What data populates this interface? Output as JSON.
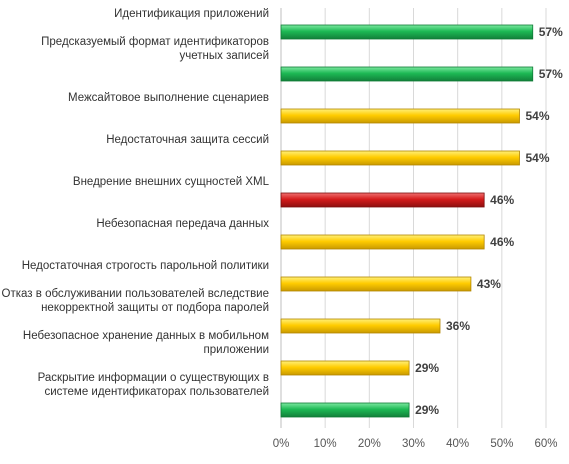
{
  "chart_data": {
    "type": "bar",
    "orientation": "horizontal",
    "categories": [
      [
        "Идентификация приложений"
      ],
      [
        "Предсказуемый формат идентификаторов",
        "учетных записей"
      ],
      [
        "Межсайтовое выполнение сценариев"
      ],
      [
        "Недостаточная защита сессий"
      ],
      [
        "Внедрение внешних сущностей XML"
      ],
      [
        "Небезопасная передача данных"
      ],
      [
        "Недостаточная строгость парольной политики"
      ],
      [
        "Отказ в обслуживании пользователей вследствие",
        "некорректной защиты от подбора паролей"
      ],
      [
        "Небезопасное хранение данных в мобильном",
        "приложении"
      ],
      [
        "Раскрытие информации о существующих в",
        "системе идентификаторах пользователей"
      ]
    ],
    "values": [
      57,
      57,
      54,
      54,
      46,
      46,
      43,
      36,
      29,
      29
    ],
    "value_labels": [
      "57%",
      "57%",
      "54%",
      "54%",
      "46%",
      "46%",
      "43%",
      "36%",
      "29%",
      "29%"
    ],
    "bar_colors": [
      "#1db954",
      "#1db954",
      "#ffcc00",
      "#ffcc00",
      "#d41b1b",
      "#ffcc00",
      "#ffcc00",
      "#ffcc00",
      "#ffcc00",
      "#1db954"
    ],
    "xlim": [
      0,
      60
    ],
    "x_ticks": [
      0,
      10,
      20,
      30,
      40,
      50,
      60
    ],
    "x_tick_labels": [
      "0%",
      "10%",
      "20%",
      "30%",
      "40%",
      "50%",
      "60%"
    ],
    "grid": "vertical",
    "legend": "none",
    "title": "",
    "xlabel": "",
    "ylabel": ""
  }
}
